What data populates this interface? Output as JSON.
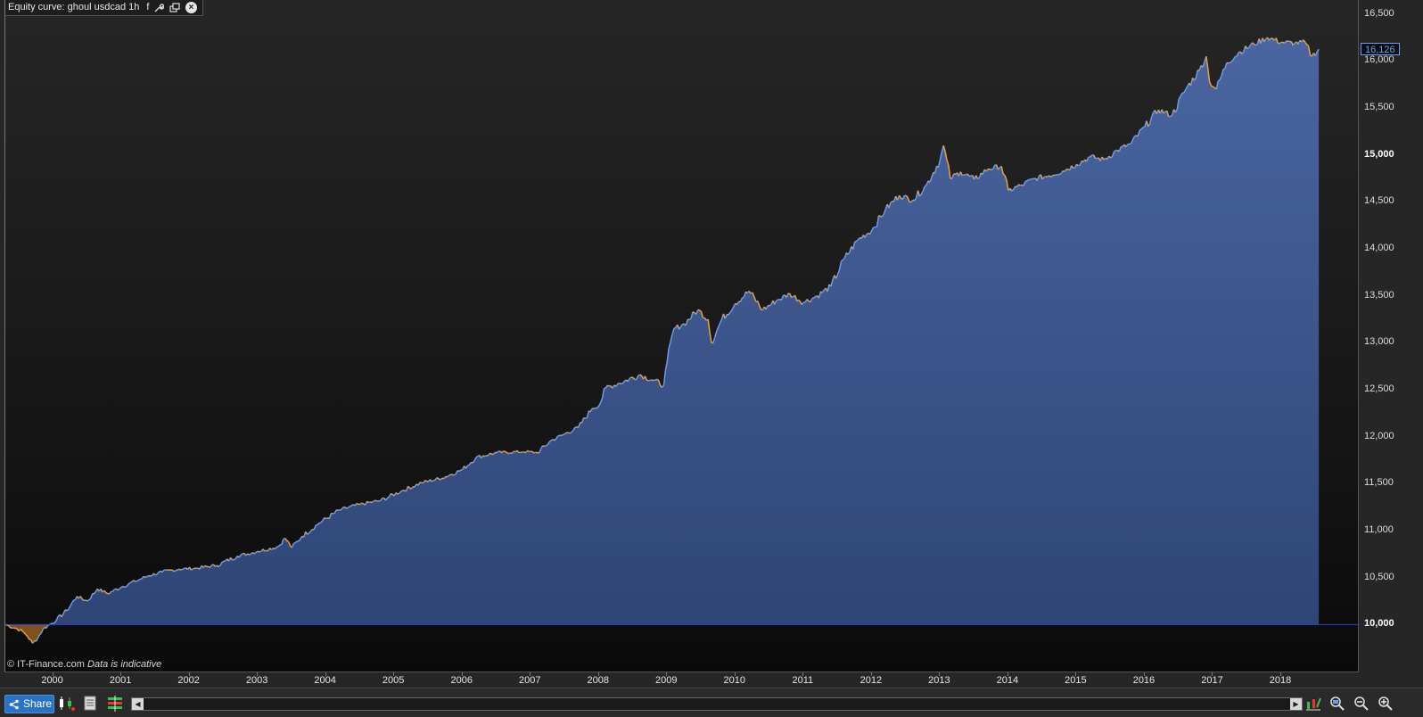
{
  "window": {
    "title": "Equity curve: ghoul usdcad 1h",
    "title_suffix": "f"
  },
  "footnote": {
    "copyright": "© IT-Finance.com",
    "disclaimer": "Data is indicative"
  },
  "last_value_label": "16,126",
  "toolbar": {
    "share_label": "Share"
  },
  "colors": {
    "area_fill_top": "#4a65a0",
    "area_fill_bottom": "#2f4576",
    "line_up": "#6d9aee",
    "line_down": "#f0a038",
    "baseline": "#2e45d6",
    "drawdown_fill": "#8a5a20"
  },
  "chart_data": {
    "type": "area",
    "title": "Equity curve: ghoul usdcad 1h",
    "xlabel": "",
    "ylabel": "",
    "baseline": 10000,
    "last_value": 16126,
    "ylim": [
      9500,
      16650
    ],
    "xlim": [
      1999.3,
      2019.15
    ],
    "grid": false,
    "y_ticks": [
      {
        "value": 10000,
        "label": "10,000",
        "major": true
      },
      {
        "value": 10500,
        "label": "10,500",
        "major": false
      },
      {
        "value": 11000,
        "label": "11,000",
        "major": false
      },
      {
        "value": 11500,
        "label": "11,500",
        "major": false
      },
      {
        "value": 12000,
        "label": "12,000",
        "major": false
      },
      {
        "value": 12500,
        "label": "12,500",
        "major": false
      },
      {
        "value": 13000,
        "label": "13,000",
        "major": false
      },
      {
        "value": 13500,
        "label": "13,500",
        "major": false
      },
      {
        "value": 14000,
        "label": "14,000",
        "major": false
      },
      {
        "value": 14500,
        "label": "14,500",
        "major": false
      },
      {
        "value": 15000,
        "label": "15,000",
        "major": true
      },
      {
        "value": 15500,
        "label": "15,500",
        "major": false
      },
      {
        "value": 16000,
        "label": "16,000",
        "major": false
      },
      {
        "value": 16500,
        "label": "16,500",
        "major": false
      }
    ],
    "x_ticks": [
      "2000",
      "2001",
      "2002",
      "2003",
      "2004",
      "2005",
      "2006",
      "2007",
      "2008",
      "2009",
      "2010",
      "2011",
      "2012",
      "2013",
      "2014",
      "2015",
      "2016",
      "2017",
      "2018"
    ],
    "series": [
      {
        "points": [
          [
            1999.3,
            10000
          ],
          [
            1999.45,
            9960
          ],
          [
            1999.55,
            9930
          ],
          [
            1999.62,
            9880
          ],
          [
            1999.7,
            9800
          ],
          [
            1999.78,
            9860
          ],
          [
            1999.85,
            9950
          ],
          [
            1999.95,
            10000
          ],
          [
            2000.05,
            10050
          ],
          [
            2000.2,
            10150
          ],
          [
            2000.35,
            10300
          ],
          [
            2000.5,
            10250
          ],
          [
            2000.65,
            10380
          ],
          [
            2000.8,
            10330
          ],
          [
            2001.0,
            10400
          ],
          [
            2001.2,
            10460
          ],
          [
            2001.4,
            10520
          ],
          [
            2001.6,
            10560
          ],
          [
            2001.85,
            10590
          ],
          [
            2002.1,
            10600
          ],
          [
            2002.4,
            10630
          ],
          [
            2002.7,
            10730
          ],
          [
            2003.0,
            10780
          ],
          [
            2003.3,
            10830
          ],
          [
            2003.4,
            10920
          ],
          [
            2003.5,
            10820
          ],
          [
            2003.65,
            10940
          ],
          [
            2003.9,
            11080
          ],
          [
            2004.2,
            11220
          ],
          [
            2004.5,
            11280
          ],
          [
            2004.8,
            11320
          ],
          [
            2005.1,
            11420
          ],
          [
            2005.4,
            11510
          ],
          [
            2005.7,
            11560
          ],
          [
            2006.0,
            11650
          ],
          [
            2006.2,
            11780
          ],
          [
            2006.5,
            11830
          ],
          [
            2006.9,
            11840
          ],
          [
            2007.1,
            11830
          ],
          [
            2007.3,
            11960
          ],
          [
            2007.5,
            12030
          ],
          [
            2007.7,
            12100
          ],
          [
            2007.9,
            12300
          ],
          [
            2008.0,
            12330
          ],
          [
            2008.1,
            12520
          ],
          [
            2008.3,
            12570
          ],
          [
            2008.6,
            12660
          ],
          [
            2008.8,
            12600
          ],
          [
            2008.95,
            12550
          ],
          [
            2009.0,
            12800
          ],
          [
            2009.1,
            13150
          ],
          [
            2009.25,
            13200
          ],
          [
            2009.45,
            13350
          ],
          [
            2009.6,
            13250
          ],
          [
            2009.65,
            13000
          ],
          [
            2009.8,
            13250
          ],
          [
            2010.0,
            13420
          ],
          [
            2010.2,
            13550
          ],
          [
            2010.4,
            13350
          ],
          [
            2010.6,
            13450
          ],
          [
            2010.8,
            13520
          ],
          [
            2011.0,
            13430
          ],
          [
            2011.2,
            13500
          ],
          [
            2011.4,
            13600
          ],
          [
            2011.6,
            13900
          ],
          [
            2011.8,
            14100
          ],
          [
            2012.0,
            14200
          ],
          [
            2012.2,
            14420
          ],
          [
            2012.4,
            14570
          ],
          [
            2012.6,
            14520
          ],
          [
            2012.8,
            14680
          ],
          [
            2013.0,
            14950
          ],
          [
            2013.05,
            15100
          ],
          [
            2013.15,
            14750
          ],
          [
            2013.3,
            14820
          ],
          [
            2013.5,
            14740
          ],
          [
            2013.7,
            14850
          ],
          [
            2013.9,
            14880
          ],
          [
            2014.0,
            14620
          ],
          [
            2014.2,
            14680
          ],
          [
            2014.4,
            14750
          ],
          [
            2014.6,
            14780
          ],
          [
            2014.8,
            14830
          ],
          [
            2015.0,
            14900
          ],
          [
            2015.2,
            14980
          ],
          [
            2015.4,
            14950
          ],
          [
            2015.6,
            15050
          ],
          [
            2015.8,
            15120
          ],
          [
            2016.0,
            15300
          ],
          [
            2016.2,
            15480
          ],
          [
            2016.4,
            15420
          ],
          [
            2016.6,
            15700
          ],
          [
            2016.8,
            15900
          ],
          [
            2016.9,
            16050
          ],
          [
            2016.95,
            15780
          ],
          [
            2017.05,
            15700
          ],
          [
            2017.2,
            15980
          ],
          [
            2017.4,
            16100
          ],
          [
            2017.6,
            16180
          ],
          [
            2017.8,
            16250
          ],
          [
            2018.0,
            16200
          ],
          [
            2018.2,
            16190
          ],
          [
            2018.35,
            16200
          ],
          [
            2018.45,
            16050
          ],
          [
            2018.55,
            16126
          ]
        ]
      }
    ]
  }
}
